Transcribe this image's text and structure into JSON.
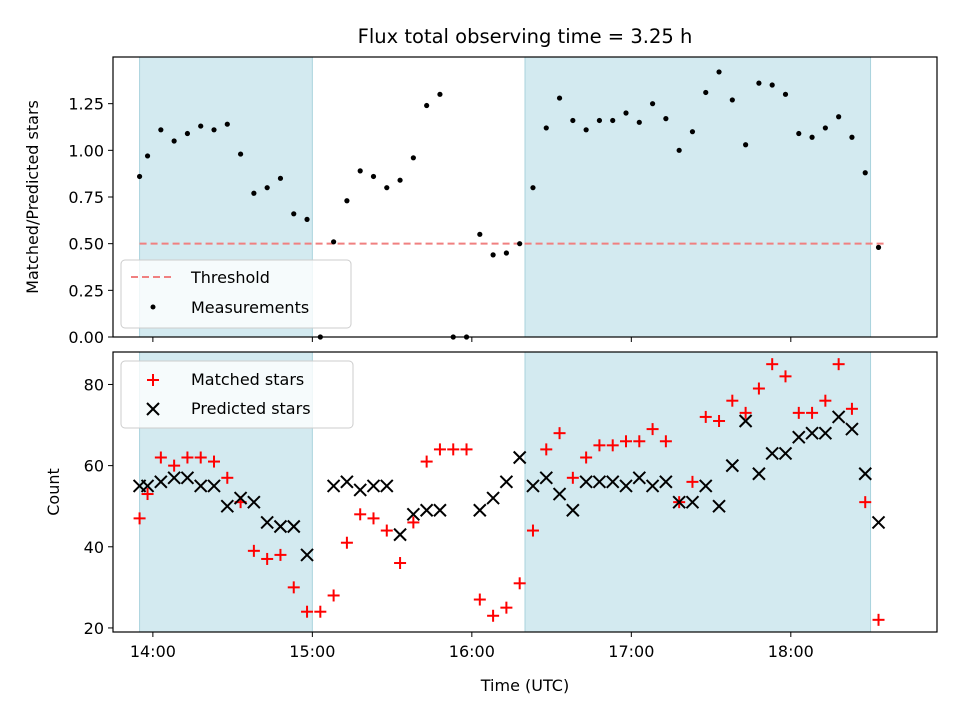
{
  "chart_data": [
    {
      "type": "scatter",
      "title": "Flux total observing time = 3.25 h",
      "ylabel": "Matched/Predicted stars",
      "xlabel": "",
      "xlim": [
        "13:45",
        "18:55"
      ],
      "ylim": [
        0,
        1.5
      ],
      "x_ticks": [
        "14:00",
        "15:00",
        "16:00",
        "17:00",
        "18:00"
      ],
      "y_ticks": [
        0.0,
        0.25,
        0.5,
        0.75,
        1.0,
        1.25
      ],
      "y_tick_labels": [
        "0.00",
        "0.25",
        "0.50",
        "0.75",
        "1.00",
        "1.25"
      ],
      "shaded_intervals": [
        [
          "13:55",
          "15:00"
        ],
        [
          "16:20",
          "18:30"
        ]
      ],
      "shade_color": "#d3eaf0",
      "legend_position": "lower-left",
      "series": [
        {
          "name": "Threshold",
          "style": "dashed-line",
          "color": "#f08080",
          "x": [
            "13:55",
            "18:35"
          ],
          "y": [
            0.5,
            0.5
          ]
        },
        {
          "name": "Measurements",
          "style": "dot",
          "color": "#000000",
          "x": [
            "13:55",
            "13:58",
            "14:03",
            "14:08",
            "14:13",
            "14:18",
            "14:23",
            "14:28",
            "14:33",
            "14:38",
            "14:43",
            "14:48",
            "14:53",
            "14:58",
            "15:03",
            "15:08",
            "15:13",
            "15:18",
            "15:23",
            "15:28",
            "15:33",
            "15:38",
            "15:43",
            "15:48",
            "15:53",
            "15:58",
            "16:03",
            "16:08",
            "16:13",
            "16:18",
            "16:23",
            "16:28",
            "16:33",
            "16:38",
            "16:43",
            "16:48",
            "16:53",
            "16:58",
            "17:03",
            "17:08",
            "17:13",
            "17:18",
            "17:23",
            "17:28",
            "17:33",
            "17:38",
            "17:43",
            "17:48",
            "17:53",
            "17:58",
            "18:03",
            "18:08",
            "18:13",
            "18:18",
            "18:23",
            "18:28",
            "18:33"
          ],
          "y": [
            0.86,
            0.97,
            1.11,
            1.05,
            1.09,
            1.13,
            1.11,
            1.14,
            0.98,
            0.77,
            0.8,
            0.85,
            0.66,
            0.63,
            0.0,
            0.51,
            0.73,
            0.89,
            0.86,
            0.8,
            0.84,
            0.96,
            1.24,
            1.3,
            0.0,
            0.0,
            0.55,
            0.44,
            0.45,
            0.5,
            0.8,
            1.12,
            1.28,
            1.16,
            1.11,
            1.16,
            1.16,
            1.2,
            1.15,
            1.25,
            1.17,
            1.0,
            1.1,
            1.31,
            1.42,
            1.27,
            1.03,
            1.36,
            1.35,
            1.3,
            1.09,
            1.07,
            1.12,
            1.18,
            1.07,
            0.88,
            0.48
          ]
        }
      ]
    },
    {
      "type": "scatter",
      "title": "",
      "ylabel": "Count",
      "xlabel": "Time (UTC)",
      "xlim": [
        "13:45",
        "18:55"
      ],
      "ylim": [
        19,
        88
      ],
      "x_ticks": [
        "14:00",
        "15:00",
        "16:00",
        "17:00",
        "18:00"
      ],
      "y_ticks": [
        20,
        40,
        60,
        80
      ],
      "shaded_intervals": [
        [
          "13:55",
          "15:00"
        ],
        [
          "16:20",
          "18:30"
        ]
      ],
      "shade_color": "#d3eaf0",
      "legend_position": "upper-left",
      "series": [
        {
          "name": "Matched stars",
          "style": "plus",
          "color": "#ff0000",
          "x": [
            "13:55",
            "13:58",
            "14:03",
            "14:08",
            "14:13",
            "14:18",
            "14:23",
            "14:28",
            "14:33",
            "14:38",
            "14:43",
            "14:48",
            "14:53",
            "14:58",
            "15:03",
            "15:08",
            "15:13",
            "15:18",
            "15:23",
            "15:28",
            "15:33",
            "15:38",
            "15:43",
            "15:48",
            "15:53",
            "15:58",
            "16:03",
            "16:08",
            "16:13",
            "16:18",
            "16:23",
            "16:28",
            "16:33",
            "16:38",
            "16:43",
            "16:48",
            "16:53",
            "16:58",
            "17:03",
            "17:08",
            "17:13",
            "17:18",
            "17:23",
            "17:28",
            "17:33",
            "17:38",
            "17:43",
            "17:48",
            "17:53",
            "17:58",
            "18:03",
            "18:08",
            "18:13",
            "18:18",
            "18:23",
            "18:28",
            "18:33"
          ],
          "y": [
            47,
            53,
            62,
            60,
            62,
            62,
            61,
            57,
            51,
            39,
            37,
            38,
            30,
            24,
            24,
            28,
            41,
            48,
            47,
            44,
            36,
            46,
            61,
            64,
            64,
            64,
            27,
            23,
            25,
            31,
            44,
            64,
            68,
            57,
            62,
            65,
            65,
            66,
            66,
            69,
            66,
            51,
            56,
            72,
            71,
            76,
            73,
            79,
            85,
            82,
            73,
            73,
            76,
            85,
            74,
            51,
            22
          ]
        },
        {
          "name": "Predicted stars",
          "style": "cross",
          "color": "#000000",
          "x": [
            "13:55",
            "13:58",
            "14:03",
            "14:08",
            "14:13",
            "14:18",
            "14:23",
            "14:28",
            "14:33",
            "14:38",
            "14:43",
            "14:48",
            "14:53",
            "14:58",
            "15:08",
            "15:13",
            "15:18",
            "15:23",
            "15:28",
            "15:33",
            "15:38",
            "15:43",
            "15:48",
            "16:03",
            "16:08",
            "16:13",
            "16:18",
            "16:23",
            "16:28",
            "16:33",
            "16:38",
            "16:43",
            "16:48",
            "16:53",
            "16:58",
            "17:03",
            "17:08",
            "17:13",
            "17:18",
            "17:23",
            "17:28",
            "17:33",
            "17:38",
            "17:43",
            "17:48",
            "17:53",
            "17:58",
            "18:03",
            "18:08",
            "18:13",
            "18:18",
            "18:23",
            "18:28",
            "18:33"
          ],
          "y": [
            55,
            55,
            56,
            57,
            57,
            55,
            55,
            50,
            52,
            51,
            46,
            45,
            45,
            38,
            55,
            56,
            54,
            55,
            55,
            43,
            48,
            49,
            49,
            49,
            52,
            56,
            62,
            55,
            57,
            53,
            49,
            56,
            56,
            56,
            55,
            57,
            55,
            56,
            51,
            51,
            55,
            50,
            60,
            71,
            58,
            63,
            63,
            67,
            68,
            68,
            72,
            69,
            58,
            46
          ]
        }
      ]
    }
  ]
}
